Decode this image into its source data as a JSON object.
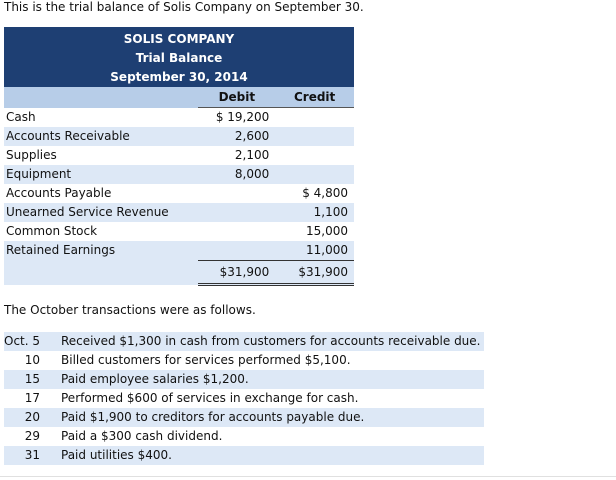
{
  "intro": "This is the trial balance of Solis Company on September 30.",
  "header": {
    "company": "SOLIS COMPANY",
    "statement": "Trial Balance",
    "date": "September 30, 2014"
  },
  "columns": {
    "debit": "Debit",
    "credit": "Credit"
  },
  "accounts": [
    {
      "name": "Cash",
      "debit": "$ 19,200",
      "credit": ""
    },
    {
      "name": "Accounts Receivable",
      "debit": "2,600",
      "credit": ""
    },
    {
      "name": "Supplies",
      "debit": "2,100",
      "credit": ""
    },
    {
      "name": "Equipment",
      "debit": "8,000",
      "credit": ""
    },
    {
      "name": "Accounts Payable",
      "debit": "",
      "credit": "$ 4,800"
    },
    {
      "name": "Unearned Service Revenue",
      "debit": "",
      "credit": "1,100"
    },
    {
      "name": "Common Stock",
      "debit": "",
      "credit": "15,000"
    },
    {
      "name": "Retained Earnings",
      "debit": "",
      "credit": "11,000"
    }
  ],
  "totals": {
    "debit": "$31,900",
    "credit": "$31,900"
  },
  "october_intro": "The October transactions were as follows.",
  "transactions": [
    {
      "date": "Oct. 5",
      "text": "Received $1,300 in cash from customers for accounts receivable due."
    },
    {
      "date": "10",
      "text": "Billed customers for services performed $5,100."
    },
    {
      "date": "15",
      "text": "Paid employee salaries $1,200."
    },
    {
      "date": "17",
      "text": "Performed $600 of services in exchange for cash."
    },
    {
      "date": "20",
      "text": "Paid $1,900 to creditors for accounts payable due."
    },
    {
      "date": "29",
      "text": "Paid a $300 cash dividend."
    },
    {
      "date": "31",
      "text": "Paid utilities $400."
    }
  ]
}
